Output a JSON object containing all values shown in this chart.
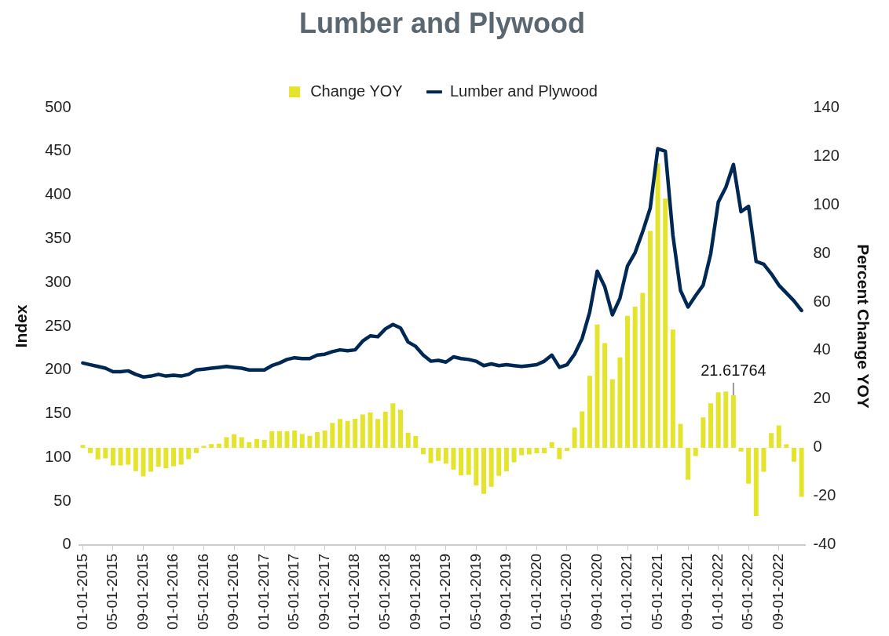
{
  "chart_data": {
    "type": "bar",
    "title": "Lumber and Plywood",
    "ylabel": "Index",
    "y2label": "Percent Change YOY",
    "categories": [
      "01-01-2015",
      null,
      null,
      null,
      "05-01-2015",
      null,
      null,
      null,
      "09-01-2015",
      null,
      null,
      null,
      "01-01-2016",
      null,
      null,
      null,
      "05-01-2016",
      null,
      null,
      null,
      "09-01-2016",
      null,
      null,
      null,
      "01-01-2017",
      null,
      null,
      null,
      "05-01-2017",
      null,
      null,
      null,
      "09-01-2017",
      null,
      null,
      null,
      "01-01-2018",
      null,
      null,
      null,
      "05-01-2018",
      null,
      null,
      null,
      "09-01-2018",
      null,
      null,
      null,
      "01-01-2019",
      null,
      null,
      null,
      "05-01-2019",
      null,
      null,
      null,
      "09-01-2019",
      null,
      null,
      null,
      "01-01-2020",
      null,
      null,
      null,
      "05-01-2020",
      null,
      null,
      null,
      "09-01-2020",
      null,
      null,
      null,
      "01-01-2021",
      null,
      null,
      null,
      "05-01-2021",
      null,
      null,
      null,
      "09-01-2021",
      null,
      null,
      null,
      "01-01-2022",
      null,
      null,
      null,
      "05-01-2022",
      null,
      null,
      null,
      "09-01-2022",
      null,
      null,
      null
    ],
    "series": [
      {
        "name": "Change YOY",
        "axis": "y2",
        "color": "#e3e42b",
        "values": [
          1.1,
          -2.2,
          -4.8,
          -4.4,
          -7.3,
          -7.3,
          -7.0,
          -9.6,
          -11.8,
          -9.9,
          -7.9,
          -8.4,
          -7.6,
          -7.0,
          -4.7,
          -2.2,
          0.8,
          1.5,
          1.7,
          4.3,
          5.5,
          4.3,
          2.3,
          3.6,
          3.2,
          6.8,
          6.8,
          6.8,
          7.1,
          5.6,
          4.9,
          6.4,
          7.1,
          10.2,
          11.8,
          11.0,
          11.9,
          13.7,
          14.5,
          11.8,
          14.8,
          18.3,
          15.6,
          6.2,
          4.8,
          -2.7,
          -6.3,
          -5.4,
          -6.6,
          -9.0,
          -11.4,
          -11.2,
          -15.5,
          -19.0,
          -16.1,
          -11.6,
          -9.7,
          -6.0,
          -3.1,
          -2.8,
          -2.3,
          -2.3,
          2.3,
          -4.7,
          -1.3,
          8.3,
          15.0,
          29.6,
          50.7,
          43.1,
          28.2,
          37.2,
          54.3,
          58.1,
          63.7,
          89.2,
          117,
          102.5,
          48.6,
          9.8,
          -13.2,
          -3.4,
          12.5,
          18.3,
          22.8,
          23.1,
          21.61764,
          -1.6,
          -14.8,
          -28.1,
          -9.9,
          6.0,
          9.2,
          1.4,
          -5.8,
          -20.2
        ],
        "value_labels": [
          null,
          null,
          null,
          null,
          null,
          null,
          null,
          null,
          null,
          null,
          null,
          null,
          null,
          null,
          null,
          null,
          null,
          null,
          null,
          null,
          null,
          null,
          null,
          null,
          null,
          null,
          null,
          null,
          null,
          null,
          null,
          null,
          null,
          null,
          null,
          null,
          null,
          null,
          null,
          null,
          null,
          null,
          null,
          null,
          null,
          null,
          null,
          null,
          null,
          null,
          null,
          null,
          null,
          null,
          null,
          null,
          null,
          null,
          null,
          null,
          null,
          null,
          null,
          null,
          null,
          null,
          null,
          null,
          null,
          null,
          null,
          null,
          null,
          null,
          null,
          null,
          null,
          null,
          null,
          null,
          null,
          null,
          null,
          null,
          null,
          null,
          "21.61764",
          null,
          null,
          null,
          null,
          null,
          null,
          null,
          null,
          null
        ]
      },
      {
        "name": "Lumber and Plywood",
        "type": "line",
        "color": "#002855",
        "values": [
          208,
          206,
          204,
          202,
          198,
          198,
          199,
          195,
          192,
          193,
          195,
          193,
          194,
          193,
          195,
          200,
          201,
          202,
          203,
          204,
          203,
          202,
          200,
          200,
          200,
          205,
          208,
          212,
          214,
          213,
          213,
          217,
          218,
          221,
          223,
          222,
          223,
          233,
          239,
          238,
          247,
          252,
          248,
          232,
          227,
          217,
          210,
          211,
          209,
          215,
          213,
          212,
          210,
          205,
          207,
          205,
          206,
          205,
          204,
          205,
          206,
          210,
          217,
          203,
          206,
          218,
          236,
          266,
          313,
          295,
          263,
          282,
          319,
          334,
          358,
          385,
          453,
          450,
          354,
          291,
          272,
          285,
          297,
          333,
          392,
          409,
          435,
          381,
          387,
          324,
          321,
          310,
          297,
          288,
          279,
          268
        ]
      }
    ],
    "ylim": [
      0,
      500
    ],
    "yticks": [
      0,
      50,
      100,
      150,
      200,
      250,
      300,
      350,
      400,
      450,
      500
    ],
    "y2lim": [
      -40,
      140
    ],
    "y2ticks": [
      -40,
      -20,
      0,
      20,
      40,
      60,
      80,
      100,
      120,
      140
    ],
    "legend": "top",
    "grid": false,
    "marker": "none",
    "line_style": "solid"
  }
}
